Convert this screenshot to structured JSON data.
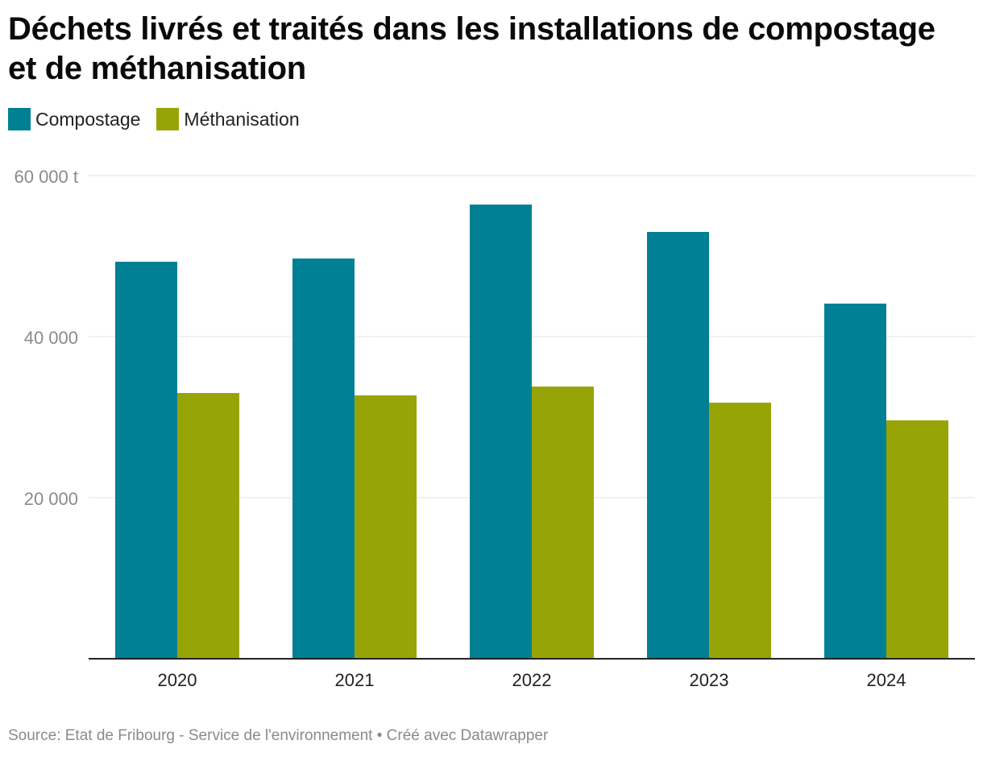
{
  "colors": {
    "compostage": "#008094",
    "methanisation": "#96a505",
    "grid": "#e3e3e3",
    "axis": "#222222",
    "ytick": "#8a8a8a",
    "xtick": "#222222"
  },
  "chart_data": {
    "type": "bar",
    "title": "Déchets livrés et traités dans les installations de compostage et de méthanisation",
    "categories": [
      "2020",
      "2021",
      "2022",
      "2023",
      "2024"
    ],
    "series": [
      {
        "name": "Compostage",
        "values": [
          49300,
          49700,
          56400,
          53000,
          44100
        ]
      },
      {
        "name": "Méthanisation",
        "values": [
          33000,
          32700,
          33800,
          31800,
          29600
        ]
      }
    ],
    "ylim": [
      0,
      60000
    ],
    "yticks": [
      {
        "value": 20000,
        "label": "20 000"
      },
      {
        "value": 40000,
        "label": "40 000"
      },
      {
        "value": 60000,
        "label": "60 000 t"
      }
    ],
    "legend": [
      "Compostage",
      "Méthanisation"
    ],
    "legend_position": "top-left",
    "grid": true
  },
  "source": "Source: Etat de Fribourg - Service de l'environnement • Créé avec Datawrapper"
}
